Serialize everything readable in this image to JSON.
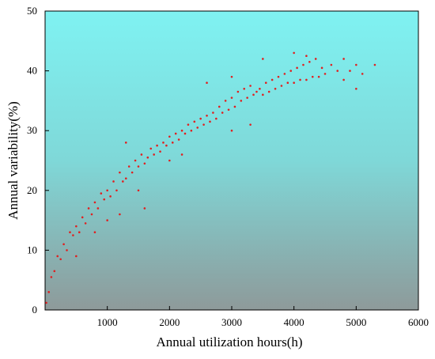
{
  "chart_data": {
    "type": "scatter",
    "x_label": "Annual utilization hours(h)",
    "y_label": "Annual variability(%)",
    "color": "#e02020",
    "xlim": [
      0,
      6000
    ],
    "ylim": [
      0,
      50
    ],
    "xticks": [
      1000,
      2000,
      3000,
      4000,
      5000,
      6000
    ],
    "yticks": [
      0,
      10,
      20,
      30,
      40,
      50
    ],
    "x": [
      20,
      60,
      100,
      150,
      200,
      250,
      300,
      350,
      400,
      450,
      500,
      550,
      600,
      650,
      700,
      750,
      800,
      850,
      900,
      950,
      1000,
      1050,
      1100,
      1150,
      1200,
      1250,
      1300,
      1350,
      1400,
      1450,
      1500,
      1550,
      1600,
      1650,
      1700,
      1750,
      1800,
      1850,
      1900,
      1950,
      2000,
      2050,
      2100,
      2150,
      2200,
      2250,
      2300,
      2350,
      2400,
      2450,
      2500,
      2550,
      2600,
      2650,
      2700,
      2750,
      2800,
      2850,
      2900,
      2950,
      3000,
      3050,
      3100,
      3150,
      3200,
      3250,
      3300,
      3350,
      3400,
      3450,
      3500,
      3550,
      3600,
      3650,
      3700,
      3750,
      3800,
      3850,
      3900,
      3950,
      4000,
      4050,
      4100,
      4150,
      4200,
      4250,
      4300,
      4350,
      4400,
      4450,
      4500,
      4600,
      4700,
      4800,
      4900,
      5000,
      5100,
      5300,
      500,
      800,
      1000,
      1200,
      1500,
      1600,
      2000,
      2200,
      3000,
      3300,
      1300,
      2600,
      3000,
      3500,
      4000,
      4200,
      4800,
      5000
    ],
    "y": [
      1.2,
      3,
      5.5,
      6.5,
      9,
      8.5,
      11,
      10,
      13,
      12.5,
      14,
      13,
      15.5,
      14.5,
      17,
      16,
      18,
      17,
      19.5,
      18.5,
      20,
      19,
      21.5,
      20,
      23,
      21.5,
      22,
      24,
      23,
      25,
      24,
      26,
      24.5,
      25.5,
      27,
      26,
      27.5,
      26.5,
      28,
      27.5,
      29,
      28,
      29.5,
      28.5,
      30,
      29.5,
      31,
      30,
      31.5,
      30.5,
      32,
      31,
      32.5,
      31.5,
      33,
      32,
      34,
      33,
      35,
      33.5,
      35.5,
      34,
      36.5,
      35,
      37,
      35.5,
      37.5,
      36,
      36.5,
      37,
      36,
      38,
      36.5,
      38.5,
      37,
      39,
      37.5,
      39.5,
      38,
      40,
      38,
      40.5,
      38.5,
      41,
      38.5,
      41.5,
      39,
      42,
      39,
      40.5,
      39.5,
      41,
      40,
      38.5,
      40,
      41,
      39.5,
      41,
      9,
      13,
      15,
      16,
      20,
      17,
      25,
      26,
      30,
      31,
      28,
      38,
      39,
      42,
      43,
      42.5,
      42,
      37
    ]
  }
}
